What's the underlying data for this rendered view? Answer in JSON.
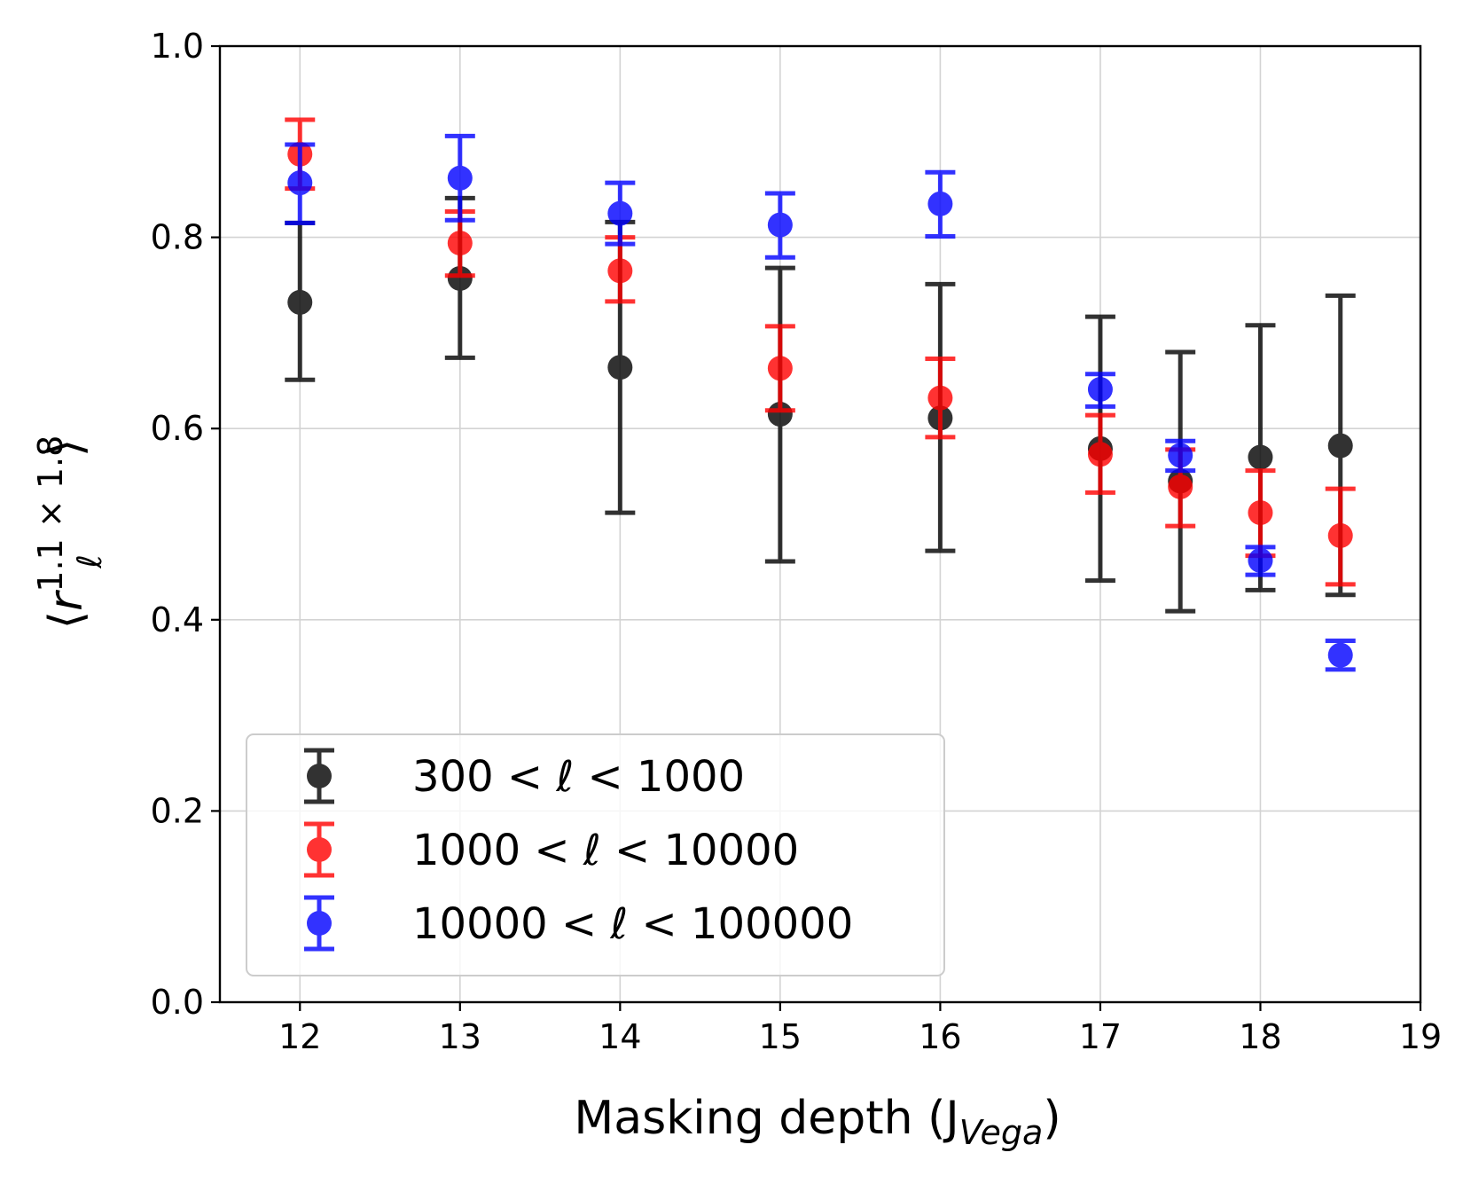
{
  "chart_data": {
    "type": "scatter",
    "title": "",
    "xlabel": {
      "main": "Masking depth (J",
      "sub": "Vega",
      "close": ")"
    },
    "ylabel": {
      "open": "⟨",
      "var": "r",
      "sub": "ℓ",
      "sup": "1.1 × 1.8",
      "close": "⟩"
    },
    "xlim": [
      11.5,
      19
    ],
    "ylim": [
      0.0,
      1.0
    ],
    "xticks": [
      12,
      13,
      14,
      15,
      16,
      17,
      18,
      19
    ],
    "xtick_labels": [
      "12",
      "13",
      "14",
      "15",
      "16",
      "17",
      "18",
      "19"
    ],
    "yticks": [
      0.0,
      0.2,
      0.4,
      0.6,
      0.8,
      1.0
    ],
    "ytick_labels": [
      "0.0",
      "0.2",
      "0.4",
      "0.6",
      "0.8",
      "1.0"
    ],
    "grid": true,
    "legend_position": "lower-left",
    "series": [
      {
        "name": "300 < ℓ < 1000",
        "color": "#000000",
        "x": [
          12,
          13,
          14,
          15,
          16,
          17,
          17.5,
          18,
          18.5
        ],
        "y": [
          0.732,
          0.757,
          0.664,
          0.615,
          0.611,
          0.579,
          0.545,
          0.57,
          0.582
        ],
        "yerr_low": [
          0.651,
          0.674,
          0.512,
          0.461,
          0.472,
          0.441,
          0.409,
          0.431,
          0.426
        ],
        "yerr_high": [
          0.815,
          0.841,
          0.816,
          0.768,
          0.751,
          0.717,
          0.68,
          0.708,
          0.739
        ]
      },
      {
        "name": "1000 < ℓ < 10000",
        "color": "#ff0000",
        "x": [
          12,
          13,
          14,
          15,
          16,
          17,
          17.5,
          18,
          18.5
        ],
        "y": [
          0.887,
          0.794,
          0.765,
          0.663,
          0.632,
          0.573,
          0.539,
          0.512,
          0.488
        ],
        "yerr_low": [
          0.851,
          0.76,
          0.733,
          0.619,
          0.591,
          0.533,
          0.498,
          0.467,
          0.437
        ],
        "yerr_high": [
          0.923,
          0.827,
          0.8,
          0.707,
          0.673,
          0.614,
          0.578,
          0.556,
          0.537
        ]
      },
      {
        "name": "10000 < ℓ < 100000",
        "color": "#0000ff",
        "x": [
          12,
          13,
          14,
          15,
          16,
          17,
          17.5,
          18,
          18.5
        ],
        "y": [
          0.857,
          0.862,
          0.825,
          0.813,
          0.835,
          0.641,
          0.572,
          0.462,
          0.363
        ],
        "yerr_low": [
          0.815,
          0.818,
          0.793,
          0.779,
          0.801,
          0.623,
          0.556,
          0.447,
          0.348
        ],
        "yerr_high": [
          0.897,
          0.906,
          0.857,
          0.846,
          0.868,
          0.657,
          0.587,
          0.476,
          0.378
        ]
      }
    ]
  }
}
